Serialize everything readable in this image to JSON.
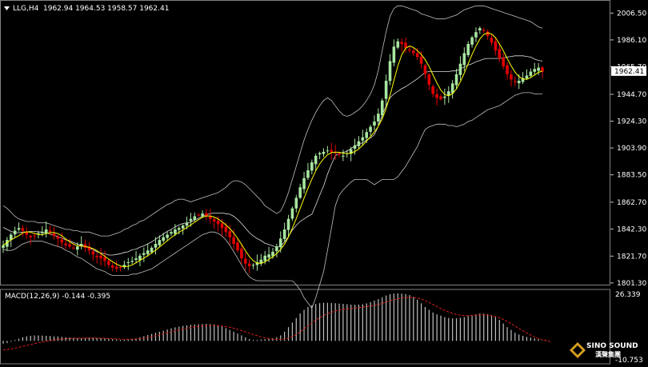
{
  "header": {
    "symbol": "LLG,H4",
    "ohlc": "1962.94 1964.53 1958.57 1962.41"
  },
  "macd": {
    "label": "MACD(12,26,9) -0.144 -0.395",
    "axis_top": "26.339",
    "axis_bottom": "-10.753"
  },
  "logo": {
    "line1": "SINO SOUND",
    "line2": "漢聲集團"
  },
  "colors": {
    "background": "#000000",
    "bull_candle": "#a8e6a0",
    "bear_candle": "#e10000",
    "ma_line": "#ffff00",
    "bands": "#c0c0c0",
    "macd_hist": "#c0c0c0",
    "macd_signal": "#e02020",
    "price_tag_bg": "#ffffff",
    "price_tag_text": "#000000"
  },
  "chart_data": {
    "type": "candlestick",
    "price_axis": {
      "ticks": [
        2006.5,
        1986.1,
        1965.7,
        1944.7,
        1924.3,
        1903.9,
        1883.5,
        1862.7,
        1842.3,
        1821.7,
        1801.3
      ],
      "tick_labels": [
        "2006.50",
        "1986.10",
        "1965.70",
        "1944.70",
        "1924.30",
        "1903.90",
        "1883.50",
        "1862.70",
        "1842.30",
        "1821.70",
        "1801.30"
      ],
      "range": [
        1800.0,
        2014.0
      ],
      "current_price": "1962.41"
    },
    "close": [
      1830,
      1834,
      1838,
      1841,
      1843,
      1841,
      1838,
      1836,
      1837,
      1839,
      1840,
      1842,
      1840,
      1837,
      1835,
      1832,
      1830,
      1829,
      1828,
      1829,
      1831,
      1828,
      1826,
      1823,
      1821,
      1820,
      1818,
      1815,
      1813,
      1812,
      1813,
      1815,
      1817,
      1818,
      1820,
      1822,
      1824,
      1826,
      1828,
      1831,
      1834,
      1836,
      1838,
      1840,
      1842,
      1843,
      1845,
      1847,
      1850,
      1852,
      1853,
      1854,
      1852,
      1850,
      1848,
      1846,
      1843,
      1840,
      1836,
      1831,
      1826,
      1820,
      1816,
      1814,
      1815,
      1817,
      1819,
      1822,
      1823,
      1825,
      1829,
      1835,
      1842,
      1850,
      1858,
      1866,
      1874,
      1881,
      1887,
      1893,
      1898,
      1900,
      1901,
      1902,
      1901,
      1900,
      1899,
      1898,
      1900,
      1903,
      1906,
      1909,
      1912,
      1916,
      1920,
      1924,
      1930,
      1940,
      1955,
      1970,
      1981,
      1985,
      1983,
      1980,
      1978,
      1976,
      1973,
      1968,
      1960,
      1952,
      1945,
      1942,
      1941,
      1943,
      1947,
      1953,
      1960,
      1968,
      1976,
      1983,
      1988,
      1992,
      1995,
      1993,
      1989,
      1984,
      1978,
      1972,
      1966,
      1960,
      1956,
      1954,
      1955,
      1957,
      1959,
      1962,
      1964,
      1965,
      1962
    ],
    "upper_band": [
      1860,
      1858,
      1855,
      1852,
      1850,
      1849,
      1848,
      1848,
      1848,
      1847,
      1847,
      1847,
      1846,
      1845,
      1844,
      1843,
      1842,
      1842,
      1841,
      1841,
      1840,
      1840,
      1840,
      1839,
      1838,
      1837,
      1837,
      1837,
      1838,
      1839,
      1840,
      1842,
      1843,
      1845,
      1846,
      1848,
      1849,
      1851,
      1853,
      1855,
      1857,
      1859,
      1861,
      1862,
      1864,
      1865,
      1865,
      1864,
      1863,
      1864,
      1865,
      1866,
      1867,
      1868,
      1869,
      1870,
      1872,
      1874,
      1877,
      1879,
      1879,
      1878,
      1876,
      1873,
      1870,
      1867,
      1864,
      1860,
      1858,
      1856,
      1854,
      1856,
      1862,
      1870,
      1880,
      1890,
      1900,
      1910,
      1918,
      1925,
      1931,
      1936,
      1940,
      1942,
      1940,
      1936,
      1932,
      1929,
      1928,
      1929,
      1931,
      1933,
      1936,
      1940,
      1945,
      1952,
      1963,
      1978,
      1992,
      2004,
      2010,
      2012,
      2012,
      2011,
      2010,
      2009,
      2008,
      2006,
      2005,
      2004,
      2003,
      2002,
      2002,
      2002,
      2003,
      2004,
      2005,
      2007,
      2009,
      2010,
      2011,
      2012,
      2012,
      2012,
      2011,
      2010,
      2009,
      2008,
      2007,
      2006,
      2005,
      2004,
      2003,
      2002,
      2001,
      2000,
      1998,
      1996,
      1995
    ],
    "lower_band": [
      1827,
      1826,
      1826,
      1827,
      1829,
      1831,
      1832,
      1833,
      1833,
      1833,
      1833,
      1832,
      1831,
      1830,
      1829,
      1828,
      1826,
      1825,
      1823,
      1821,
      1820,
      1818,
      1816,
      1814,
      1812,
      1811,
      1810,
      1808,
      1807,
      1807,
      1807,
      1807,
      1807,
      1808,
      1808,
      1809,
      1810,
      1811,
      1812,
      1814,
      1816,
      1818,
      1820,
      1822,
      1824,
      1826,
      1828,
      1830,
      1832,
      1834,
      1836,
      1838,
      1839,
      1840,
      1840,
      1839,
      1837,
      1834,
      1830,
      1825,
      1820,
      1815,
      1810,
      1806,
      1804,
      1803,
      1803,
      1803,
      1803,
      1803,
      1803,
      1803,
      1803,
      1803,
      1803,
      1800,
      1796,
      1790,
      1786,
      1782,
      1790,
      1800,
      1810,
      1826,
      1843,
      1860,
      1868,
      1872,
      1875,
      1878,
      1880,
      1880,
      1880,
      1880,
      1878,
      1876,
      1878,
      1880,
      1880,
      1880,
      1880,
      1882,
      1886,
      1890,
      1895,
      1900,
      1905,
      1912,
      1918,
      1920,
      1921,
      1922,
      1922,
      1922,
      1921,
      1921,
      1920,
      1921,
      1922,
      1924,
      1925,
      1927,
      1929,
      1931,
      1933,
      1934,
      1935,
      1936,
      1938,
      1940,
      1942,
      1944,
      1945,
      1946,
      1946,
      1946,
      1945,
      1945,
      1945
    ],
    "macd_axis_range": [
      -10.753,
      26.339
    ],
    "macd_hist": [
      -1.5,
      -1.2,
      -0.5,
      0.5,
      1.2,
      2.0,
      2.5,
      2.8,
      3.0,
      3.0,
      2.9,
      2.8,
      2.7,
      2.5,
      2.4,
      2.2,
      2.0,
      1.8,
      1.6,
      1.5,
      1.5,
      1.6,
      1.7,
      1.7,
      1.6,
      1.5,
      1.4,
      1.2,
      1.0,
      0.8,
      0.6,
      0.6,
      0.8,
      1.0,
      1.4,
      2.0,
      2.6,
      3.2,
      3.8,
      4.4,
      5.0,
      5.6,
      6.2,
      6.8,
      7.4,
      7.8,
      8.2,
      8.5,
      8.8,
      9.0,
      9.1,
      9.2,
      9.3,
      9.2,
      9.0,
      8.5,
      7.8,
      7.0,
      6.0,
      5.0,
      4.0,
      3.0,
      2.0,
      1.0,
      0.5,
      0.5,
      0.8,
      1.0,
      1.2,
      1.5,
      2.0,
      3.0,
      5.0,
      7.5,
      10.0,
      12.5,
      15.0,
      17.0,
      18.5,
      19.5,
      20.2,
      20.6,
      20.8,
      20.8,
      20.7,
      20.6,
      20.4,
      20.2,
      20.0,
      19.8,
      19.7,
      19.8,
      20.0,
      20.5,
      21.2,
      22.0,
      22.8,
      23.8,
      24.8,
      25.5,
      25.8,
      25.9,
      25.8,
      25.6,
      25.0,
      24.0,
      22.5,
      20.5,
      18.5,
      17.0,
      15.5,
      14.5,
      13.8,
      13.0,
      12.5,
      12.3,
      12.3,
      12.6,
      13.0,
      13.6,
      14.0,
      14.5,
      15.0,
      14.9,
      14.6,
      14.0,
      13.0,
      11.5,
      9.5,
      7.5,
      6.0,
      4.5,
      3.5,
      2.8,
      2.2,
      1.8,
      1.4,
      0.9,
      0.2,
      -0.144
    ],
    "macd_signal": [
      -5.0,
      -4.7,
      -4.4,
      -4.0,
      -3.5,
      -3.0,
      -2.5,
      -2.0,
      -1.5,
      -1.0,
      -0.6,
      -0.2,
      0.2,
      0.5,
      0.8,
      1.0,
      1.2,
      1.3,
      1.4,
      1.5,
      1.5,
      1.5,
      1.5,
      1.5,
      1.5,
      1.5,
      1.4,
      1.3,
      1.2,
      1.1,
      1.0,
      0.9,
      0.9,
      0.9,
      1.0,
      1.2,
      1.5,
      1.9,
      2.3,
      2.8,
      3.3,
      3.9,
      4.4,
      5.0,
      5.5,
      6.0,
      6.5,
      6.9,
      7.3,
      7.6,
      7.9,
      8.1,
      8.3,
      8.4,
      8.4,
      8.3,
      8.1,
      7.8,
      7.4,
      6.9,
      6.3,
      5.6,
      4.9,
      4.2,
      3.5,
      2.8,
      2.2,
      1.7,
      1.3,
      1.0,
      0.8,
      0.8,
      1.0,
      1.5,
      2.3,
      3.5,
      5.0,
      6.6,
      8.2,
      9.8,
      11.3,
      12.6,
      13.8,
      14.8,
      15.6,
      16.3,
      16.8,
      17.2,
      17.5,
      17.8,
      18.0,
      18.2,
      18.4,
      18.7,
      19.0,
      19.4,
      19.9,
      20.5,
      21.2,
      21.9,
      22.5,
      23.0,
      23.4,
      23.7,
      23.8,
      23.7,
      23.4,
      22.8,
      22.0,
      21.0,
      19.9,
      18.8,
      17.7,
      16.7,
      15.8,
      15.0,
      14.4,
      14.0,
      13.8,
      13.8,
      13.9,
      14.0,
      14.2,
      14.2,
      14.1,
      13.8,
      13.3,
      12.6,
      11.7,
      10.6,
      9.4,
      8.1,
      6.8,
      5.5,
      4.3,
      3.2,
      2.2,
      1.3,
      0.7,
      0.2,
      -0.395
    ]
  }
}
